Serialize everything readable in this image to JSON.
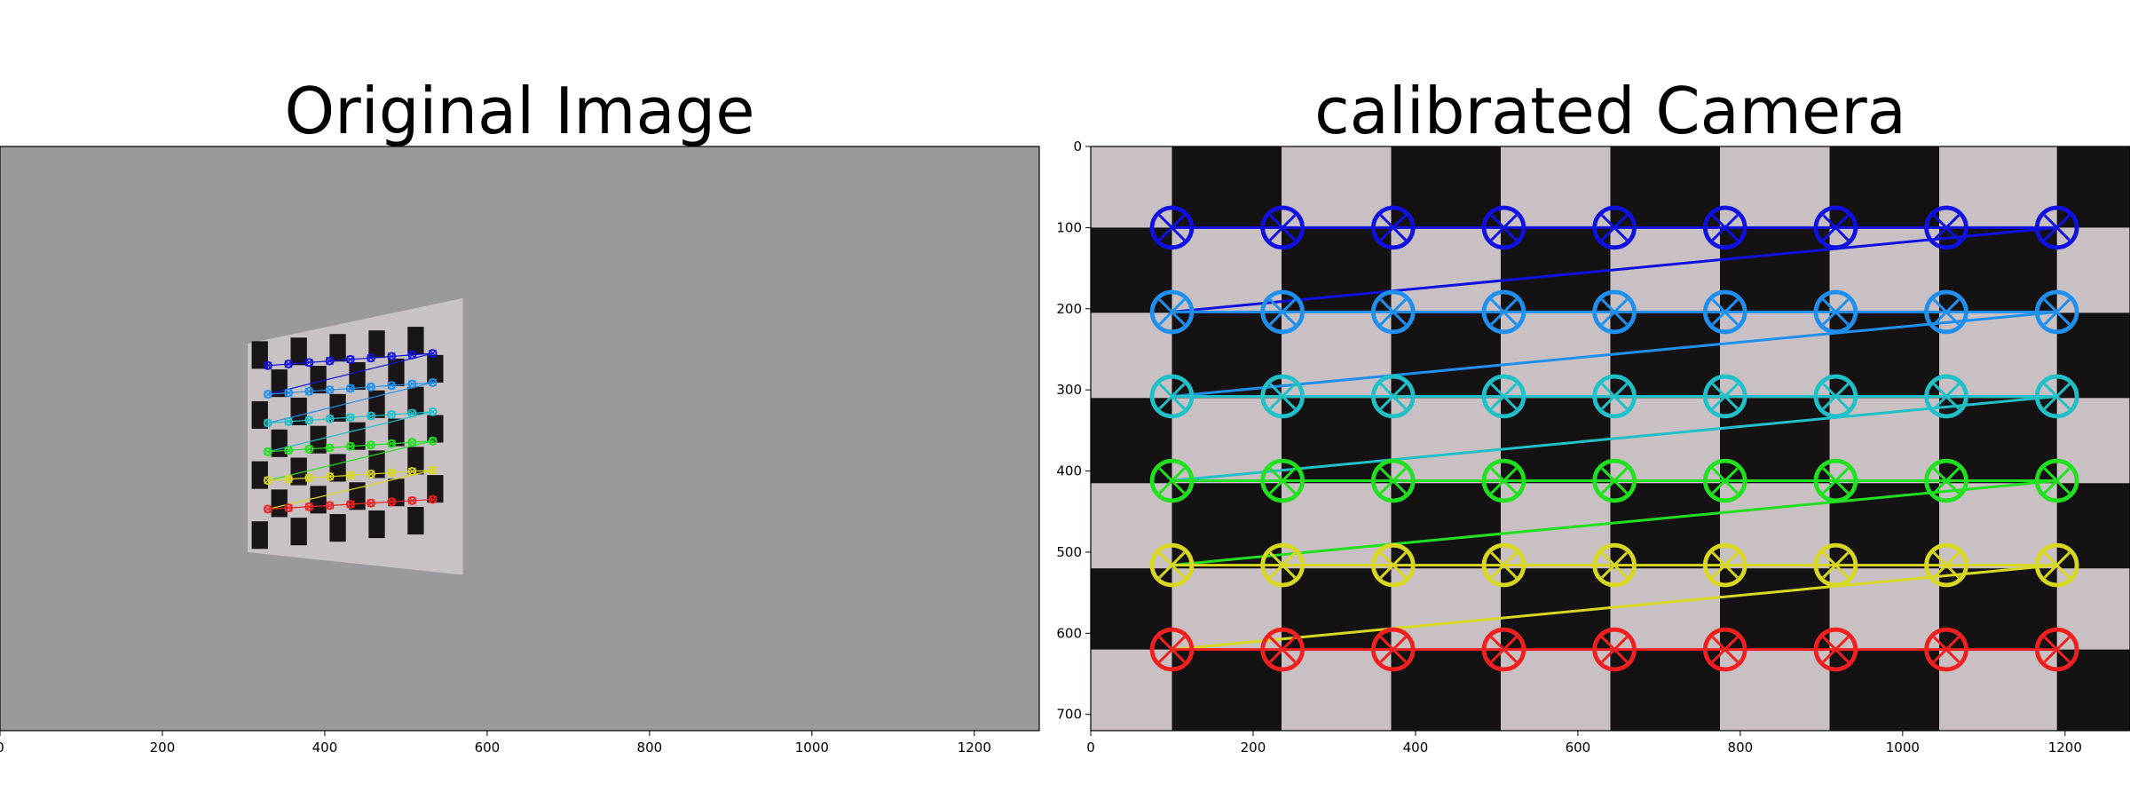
{
  "chart_data": [
    {
      "type": "image",
      "title": "Original Image",
      "xlim": [
        0,
        1280
      ],
      "ylim": [
        720,
        0
      ],
      "xticks": [
        0,
        200,
        400,
        600,
        800,
        1000,
        1200
      ]
    },
    {
      "type": "image",
      "title": "calibrated Camera",
      "xlim": [
        0,
        1280
      ],
      "ylim": [
        720,
        0
      ],
      "xticks": [
        0,
        200,
        400,
        600,
        800,
        1000,
        1200
      ],
      "yticks": [
        0,
        100,
        200,
        300,
        400,
        500,
        600,
        700
      ]
    }
  ]
}
